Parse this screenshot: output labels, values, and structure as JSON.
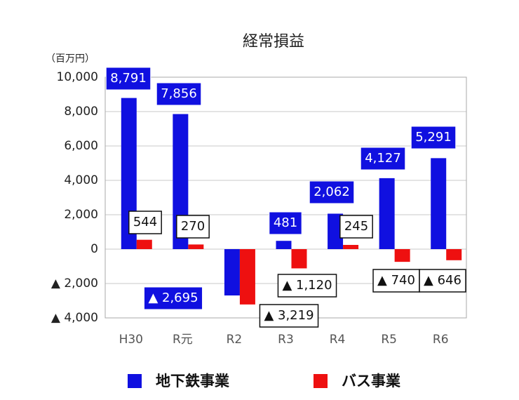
{
  "chart_data": {
    "type": "bar",
    "title": "経常損益",
    "y_unit": "（百万円）",
    "categories": [
      "H30",
      "R元",
      "R2",
      "R3",
      "R4",
      "R5",
      "R6"
    ],
    "series": [
      {
        "name": "地下鉄事業",
        "color": "#1010e0",
        "values": [
          8791,
          7856,
          -2695,
          481,
          2062,
          4127,
          5291
        ],
        "value_labels": [
          "8,791",
          "7,856",
          "▲ 2,695",
          "481",
          "2,062",
          "4,127",
          "5,291"
        ]
      },
      {
        "name": "バス事業",
        "color": "#ee1010",
        "values": [
          544,
          270,
          -3219,
          -1120,
          245,
          -740,
          -646
        ],
        "value_labels": [
          "544",
          "270",
          "▲ 3,219",
          "▲ 1,120",
          "245",
          "▲ 740",
          "▲ 646"
        ]
      }
    ],
    "ylim": [
      -4000,
      10000
    ],
    "yticks": [
      {
        "value": -4000,
        "label": "▲ 4,000"
      },
      {
        "value": -2000,
        "label": "▲ 2,000"
      },
      0,
      {
        "value": 2000,
        "label": "2,000"
      },
      {
        "value": 4000,
        "label": "4,000"
      },
      {
        "value": 6000,
        "label": "6,000"
      },
      {
        "value": 8000,
        "label": "8,000"
      },
      {
        "value": 10000,
        "label": "10,000"
      }
    ],
    "grid": true
  }
}
